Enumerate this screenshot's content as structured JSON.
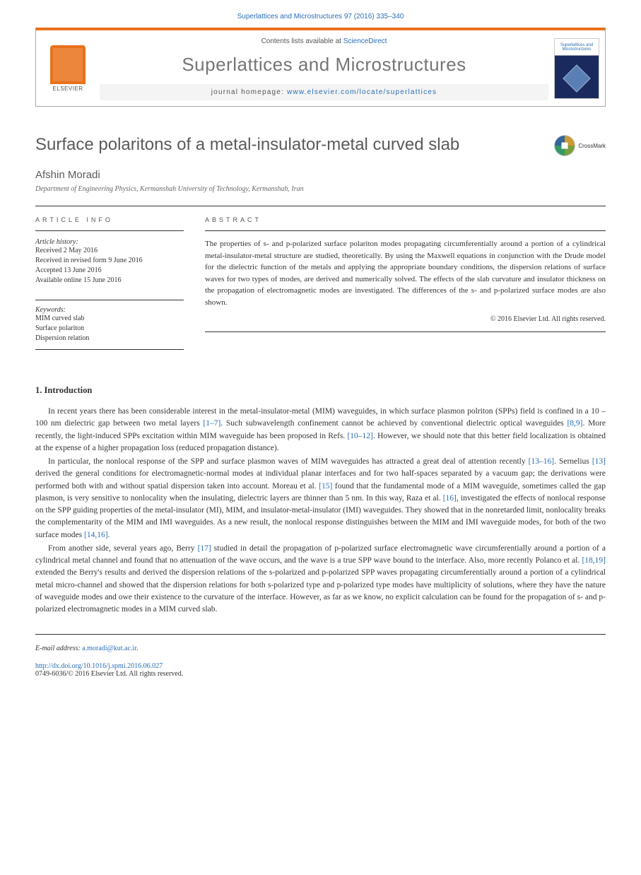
{
  "citation": "Superlattices and Microstructures 97 (2016) 335–340",
  "header": {
    "contents_prefix": "Contents lists available at ",
    "contents_link": "ScienceDirect",
    "journal_title": "Superlattices and Microstructures",
    "homepage_prefix": "journal homepage: ",
    "homepage_url": "www.elsevier.com/locate/superlattices",
    "publisher_label": "ELSEVIER",
    "cover_title": "Superlattices and Microstructures"
  },
  "article": {
    "title": "Surface polaritons of a metal-insulator-metal curved slab",
    "crossmark_label": "CrossMark",
    "author": "Afshin Moradi",
    "affiliation": "Department of Engineering Physics, Kermanshah University of Technology, Kermanshah, Iran"
  },
  "info": {
    "heading": "ARTICLE INFO",
    "history_label": "Article history:",
    "received": "Received 2 May 2016",
    "revised": "Received in revised form 9 June 2016",
    "accepted": "Accepted 13 June 2016",
    "online": "Available online 15 June 2016",
    "keywords_label": "Keywords:",
    "kw1": "MIM curved slab",
    "kw2": "Surface polariton",
    "kw3": "Dispersion relation"
  },
  "abstract": {
    "heading": "ABSTRACT",
    "text": "The properties of s- and p-polarized surface polariton modes propagating circumferentially around a portion of a cylindrical metal-insulator-metal structure are studied, theoretically. By using the Maxwell equations in conjunction with the Drude model for the dielectric function of the metals and applying the appropriate boundary conditions, the dispersion relations of surface waves for two types of modes, are derived and numerically solved. The effects of the slab curvature and insulator thickness on the propagation of electromagnetic modes are investigated. The differences of the s- and p-polarized surface modes are also shown.",
    "copyright": "© 2016 Elsevier Ltd. All rights reserved."
  },
  "body": {
    "section_heading": "1. Introduction",
    "p1_a": "In recent years there has been considerable interest in the metal-insulator-metal (MIM) waveguides, in which surface plasmon polriton (SPPs) field is confined in a 10 – 100 nm dielectric gap between two metal layers ",
    "p1_ref1": "[1–7]",
    "p1_b": ". Such subwavelength confinement cannot be achieved by conventional dielectric optical waveguides ",
    "p1_ref2": "[8,9]",
    "p1_c": ". More recently, the light-induced SPPs excitation within MIM waveguide has been proposed in Refs. ",
    "p1_ref3": "[10–12]",
    "p1_d": ". However, we should note that this better field localization is obtained at the expense of a higher propagation loss (reduced propagation distance).",
    "p2_a": "In particular, the nonlocal response of the SPP and surface plasmon waves of MIM waveguides has attracted a great deal of attention recently ",
    "p2_ref1": "[13–16]",
    "p2_b": ". Sernelius ",
    "p2_ref2": "[13]",
    "p2_c": " derived the general conditions for electromagnetic-normal modes at individual planar interfaces and for two half-spaces separated by a vacuum gap; the derivations were performed both with and without spatial dispersion taken into account. Moreau et al. ",
    "p2_ref3": "[15]",
    "p2_d": " found that the fundamental mode of a MIM waveguide, sometimes called the gap plasmon, is very sensitive to nonlocality when the insulating, dielectric layers are thinner than 5 nm. In this way, Raza et al. ",
    "p2_ref4": "[16]",
    "p2_e": ", investigated the effects of nonlocal response on the SPP guiding properties of the metal-insulator (MI), MIM, and insulator-metal-insulator (IMI) waveguides. They showed that in the nonretarded limit, nonlocality breaks the complementarity of the MIM and IMI waveguides. As a new result, the nonlocal response distinguishes between the MIM and IMI waveguide modes, for both of the two surface modes ",
    "p2_ref5": "[14,16]",
    "p2_f": ".",
    "p3_a": "From another side, several years ago, Berry ",
    "p3_ref1": "[17]",
    "p3_b": " studied in detail the propagation of p-polarized surface electromagnetic wave circumferentially around a portion of a cylindrical metal channel and found that no attenuation of the wave occurs, and the wave is a true SPP wave bound to the interface. Also, more recently Polanco et al. ",
    "p3_ref2": "[18,19]",
    "p3_c": " extended the Berry's results and derived the dispersion relations of the s-polarized and p-polarized SPP waves propagating circumferentially around a portion of a cylindrical metal micro-channel and showed that the dispersion relations for both s-polarized type and p-polarized type modes have multiplicity of solutions, where they have the nature of waveguide modes and owe their existence to the curvature of the interface. However, as far as we know, no explicit calculation can be found for the propagation of s- and p-polarized electromagnetic modes in a MIM curved slab."
  },
  "footer": {
    "email_label": "E-mail address: ",
    "email": "a.moradi@kut.ac.ir",
    "doi": "http://dx.doi.org/10.1016/j.spmi.2016.06.027",
    "issn_line": "0749-6036/© 2016 Elsevier Ltd. All rights reserved."
  },
  "colors": {
    "link": "#2a6db5",
    "accent": "#e9711c",
    "text_gray": "#5a5a5a"
  }
}
